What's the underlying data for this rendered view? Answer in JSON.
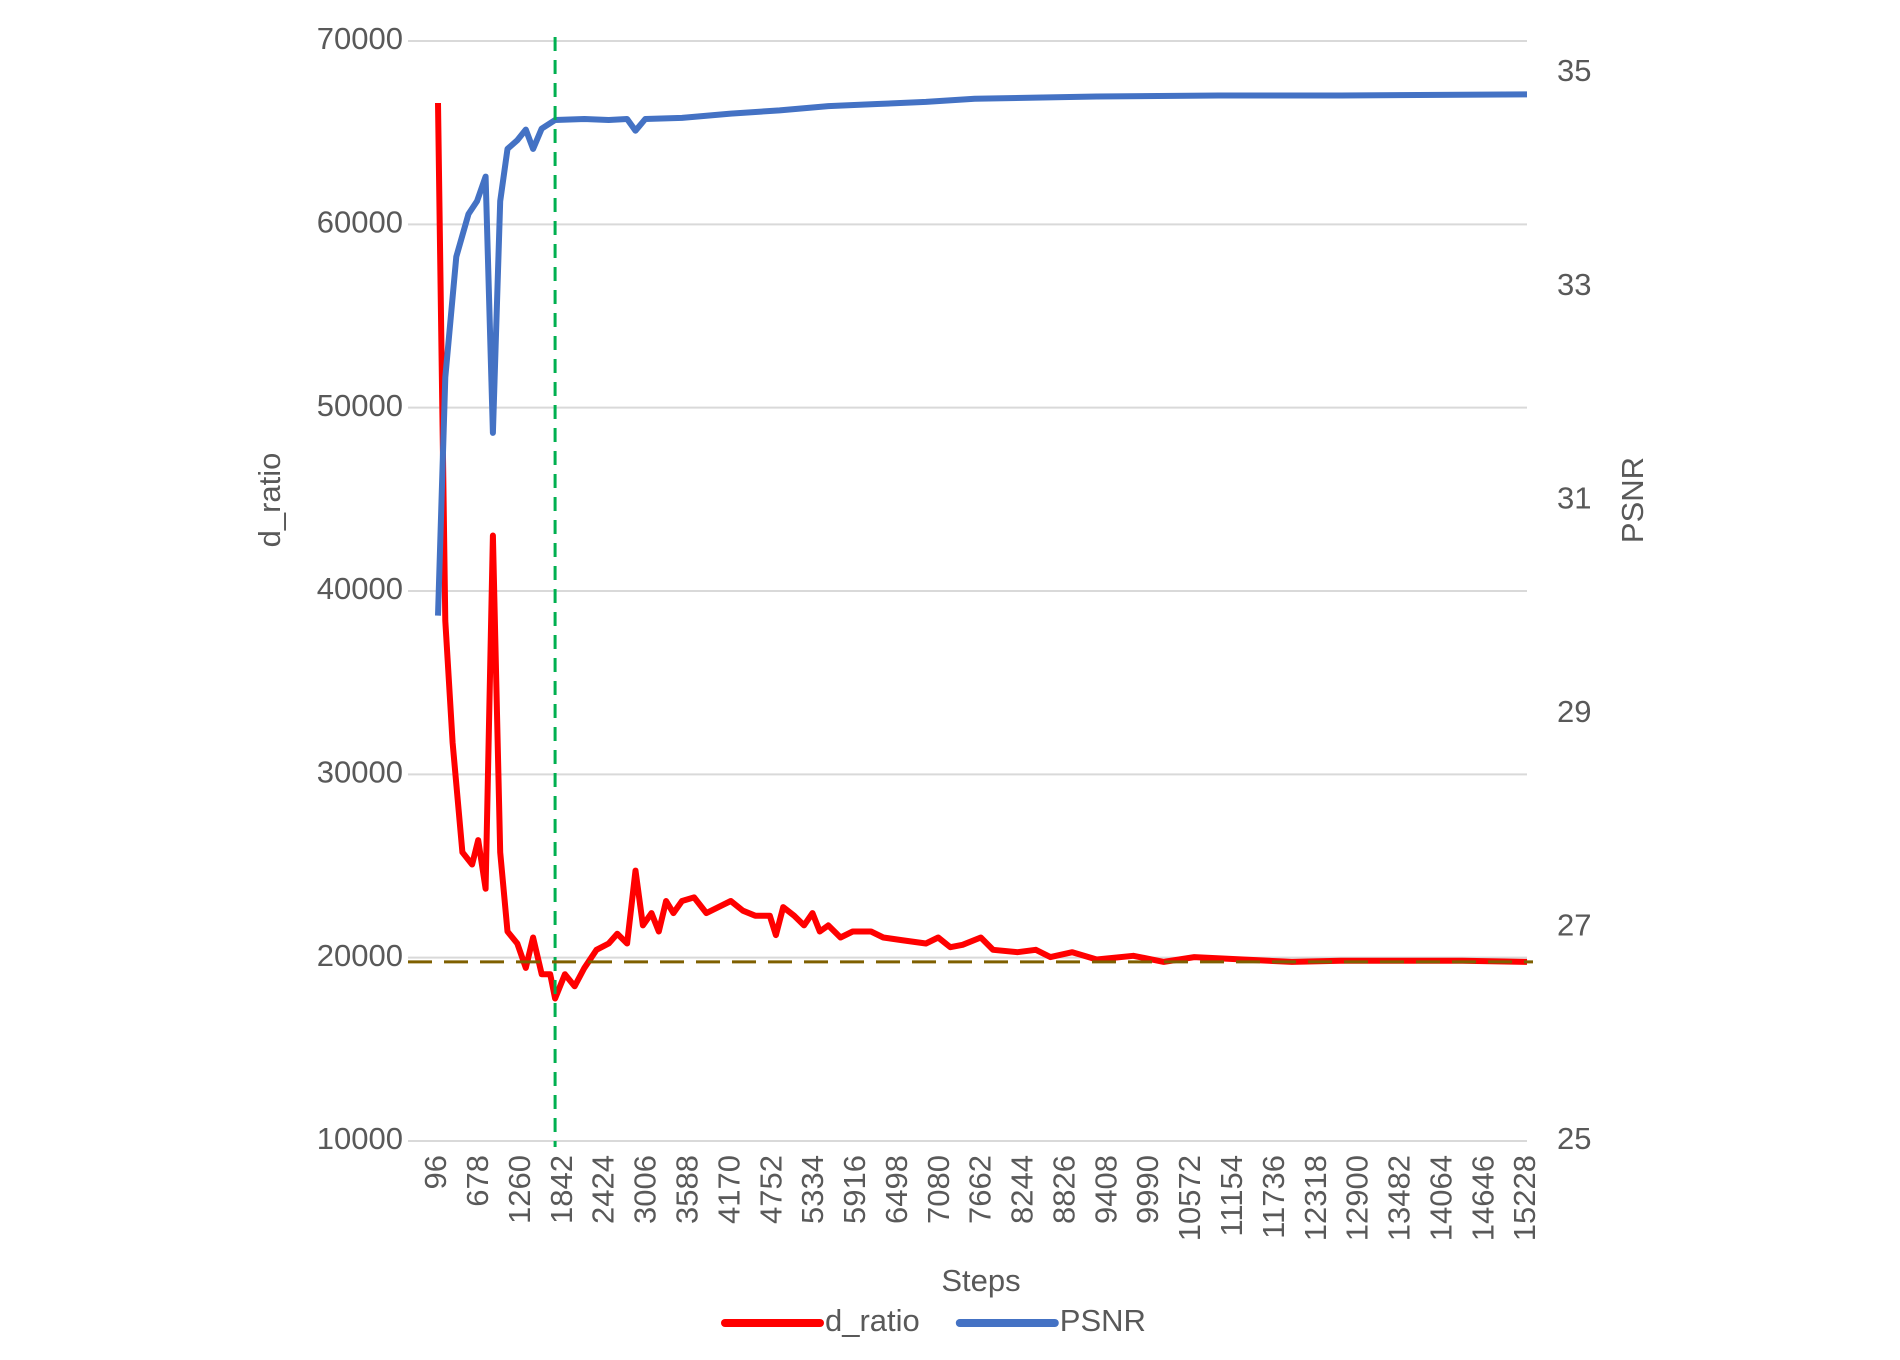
{
  "chart_data": {
    "type": "line",
    "x_label": "Steps",
    "y_label": "d_ratio",
    "y2_label": "PSNR",
    "xlim": [
      96,
      15228
    ],
    "xticks": [
      96,
      678,
      1260,
      1842,
      2424,
      3006,
      3588,
      4170,
      4752,
      5334,
      5916,
      6498,
      7080,
      7662,
      8244,
      8826,
      9408,
      9990,
      10572,
      11154,
      11736,
      12318,
      12900,
      13482,
      14064,
      14646,
      15228
    ],
    "ylim": [
      10000,
      70000
    ],
    "yticks": [
      10000,
      20000,
      30000,
      40000,
      50000,
      60000,
      70000
    ],
    "y2lim": [
      25,
      35.3
    ],
    "y2ticks": [
      25,
      27,
      29,
      31,
      33,
      35
    ],
    "grid": true,
    "legend": "bottom",
    "reference_lines": [
      {
        "axis": "x",
        "value": 1723,
        "color": "#00b050"
      },
      {
        "axis": "y",
        "value": 19770,
        "color": "#7f6000"
      }
    ],
    "series": [
      {
        "name": "d_ratio",
        "color": "#ff0000",
        "x": [
          96,
          198,
          299,
          435,
          570,
          655,
          757,
          859,
          960,
          1062,
          1198,
          1316,
          1418,
          1537,
          1655,
          1723,
          1859,
          1994,
          2130,
          2299,
          2468,
          2587,
          2723,
          2841,
          2943,
          3062,
          3164,
          3265,
          3367,
          3486,
          3655,
          3825,
          3994,
          4164,
          4333,
          4503,
          4706,
          4791,
          4893,
          5045,
          5181,
          5300,
          5401,
          5520,
          5689,
          5859,
          6113,
          6283,
          6537,
          6876,
          7046,
          7215,
          7385,
          7639,
          7808,
          8147,
          8402,
          8605,
          8910,
          9249,
          9757,
          10181,
          10605,
          11283,
          11961,
          12639,
          13486,
          14334,
          15228
        ],
        "values": [
          66620,
          38370,
          31730,
          25750,
          25080,
          26410,
          23760,
          43030,
          25750,
          21430,
          20770,
          19440,
          21100,
          19100,
          19100,
          17770,
          19100,
          18440,
          19440,
          20430,
          20770,
          21300,
          20770,
          24750,
          21760,
          22430,
          21430,
          23090,
          22430,
          23090,
          23290,
          22430,
          22760,
          23090,
          22560,
          22290,
          22290,
          21230,
          22760,
          22290,
          21760,
          22430,
          21430,
          21760,
          21100,
          21430,
          21430,
          21100,
          20960,
          20770,
          21100,
          20570,
          20700,
          21100,
          20430,
          20300,
          20430,
          20030,
          20300,
          19900,
          20100,
          19770,
          20030,
          19900,
          19770,
          19830,
          19830,
          19830,
          19770
        ]
      },
      {
        "name": "PSNR",
        "color": "#4472c4",
        "axis": "y2",
        "x": [
          96,
          198,
          350,
          520,
          638,
          757,
          859,
          960,
          1062,
          1198,
          1316,
          1418,
          1537,
          1723,
          2130,
          2468,
          2723,
          2841,
          2977,
          3486,
          4164,
          4842,
          5520,
          6198,
          6876,
          7554,
          8402,
          9249,
          10944,
          12639,
          15228
        ],
        "values": [
          29.92,
          32.15,
          33.28,
          33.68,
          33.8,
          34.03,
          31.63,
          33.8,
          34.29,
          34.37,
          34.47,
          34.29,
          34.48,
          34.56,
          34.57,
          34.56,
          34.57,
          34.46,
          34.57,
          34.58,
          34.62,
          34.65,
          34.69,
          34.71,
          34.73,
          34.76,
          34.77,
          34.78,
          34.79,
          34.79,
          34.8
        ]
      }
    ]
  }
}
